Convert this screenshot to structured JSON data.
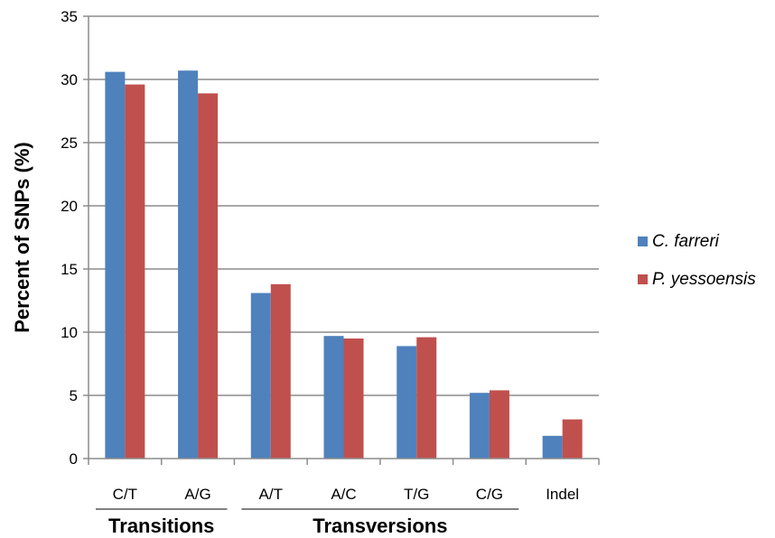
{
  "chart_data": {
    "type": "bar",
    "ylabel": "Percent of SNPs (%)",
    "ylim": [
      0,
      35
    ],
    "yticks": [
      0,
      5,
      10,
      15,
      20,
      25,
      30,
      35
    ],
    "grid": true,
    "legend_position": "right",
    "categories": [
      "C/T",
      "A/G",
      "A/T",
      "A/C",
      "T/G",
      "C/G",
      "Indel"
    ],
    "series": [
      {
        "name": "C. farreri",
        "color": "#4f81bd",
        "values": [
          30.6,
          30.7,
          13.1,
          9.7,
          8.9,
          5.2,
          1.8
        ]
      },
      {
        "name": "P. yessoensis",
        "color": "#c0504d",
        "values": [
          29.6,
          28.9,
          13.8,
          9.5,
          9.6,
          5.4,
          3.1
        ]
      }
    ],
    "groups": [
      {
        "label": "Transitions",
        "categories": [
          "C/T",
          "A/G"
        ]
      },
      {
        "label": "Transversions",
        "categories": [
          "A/T",
          "A/C",
          "T/G",
          "C/G"
        ]
      }
    ]
  }
}
